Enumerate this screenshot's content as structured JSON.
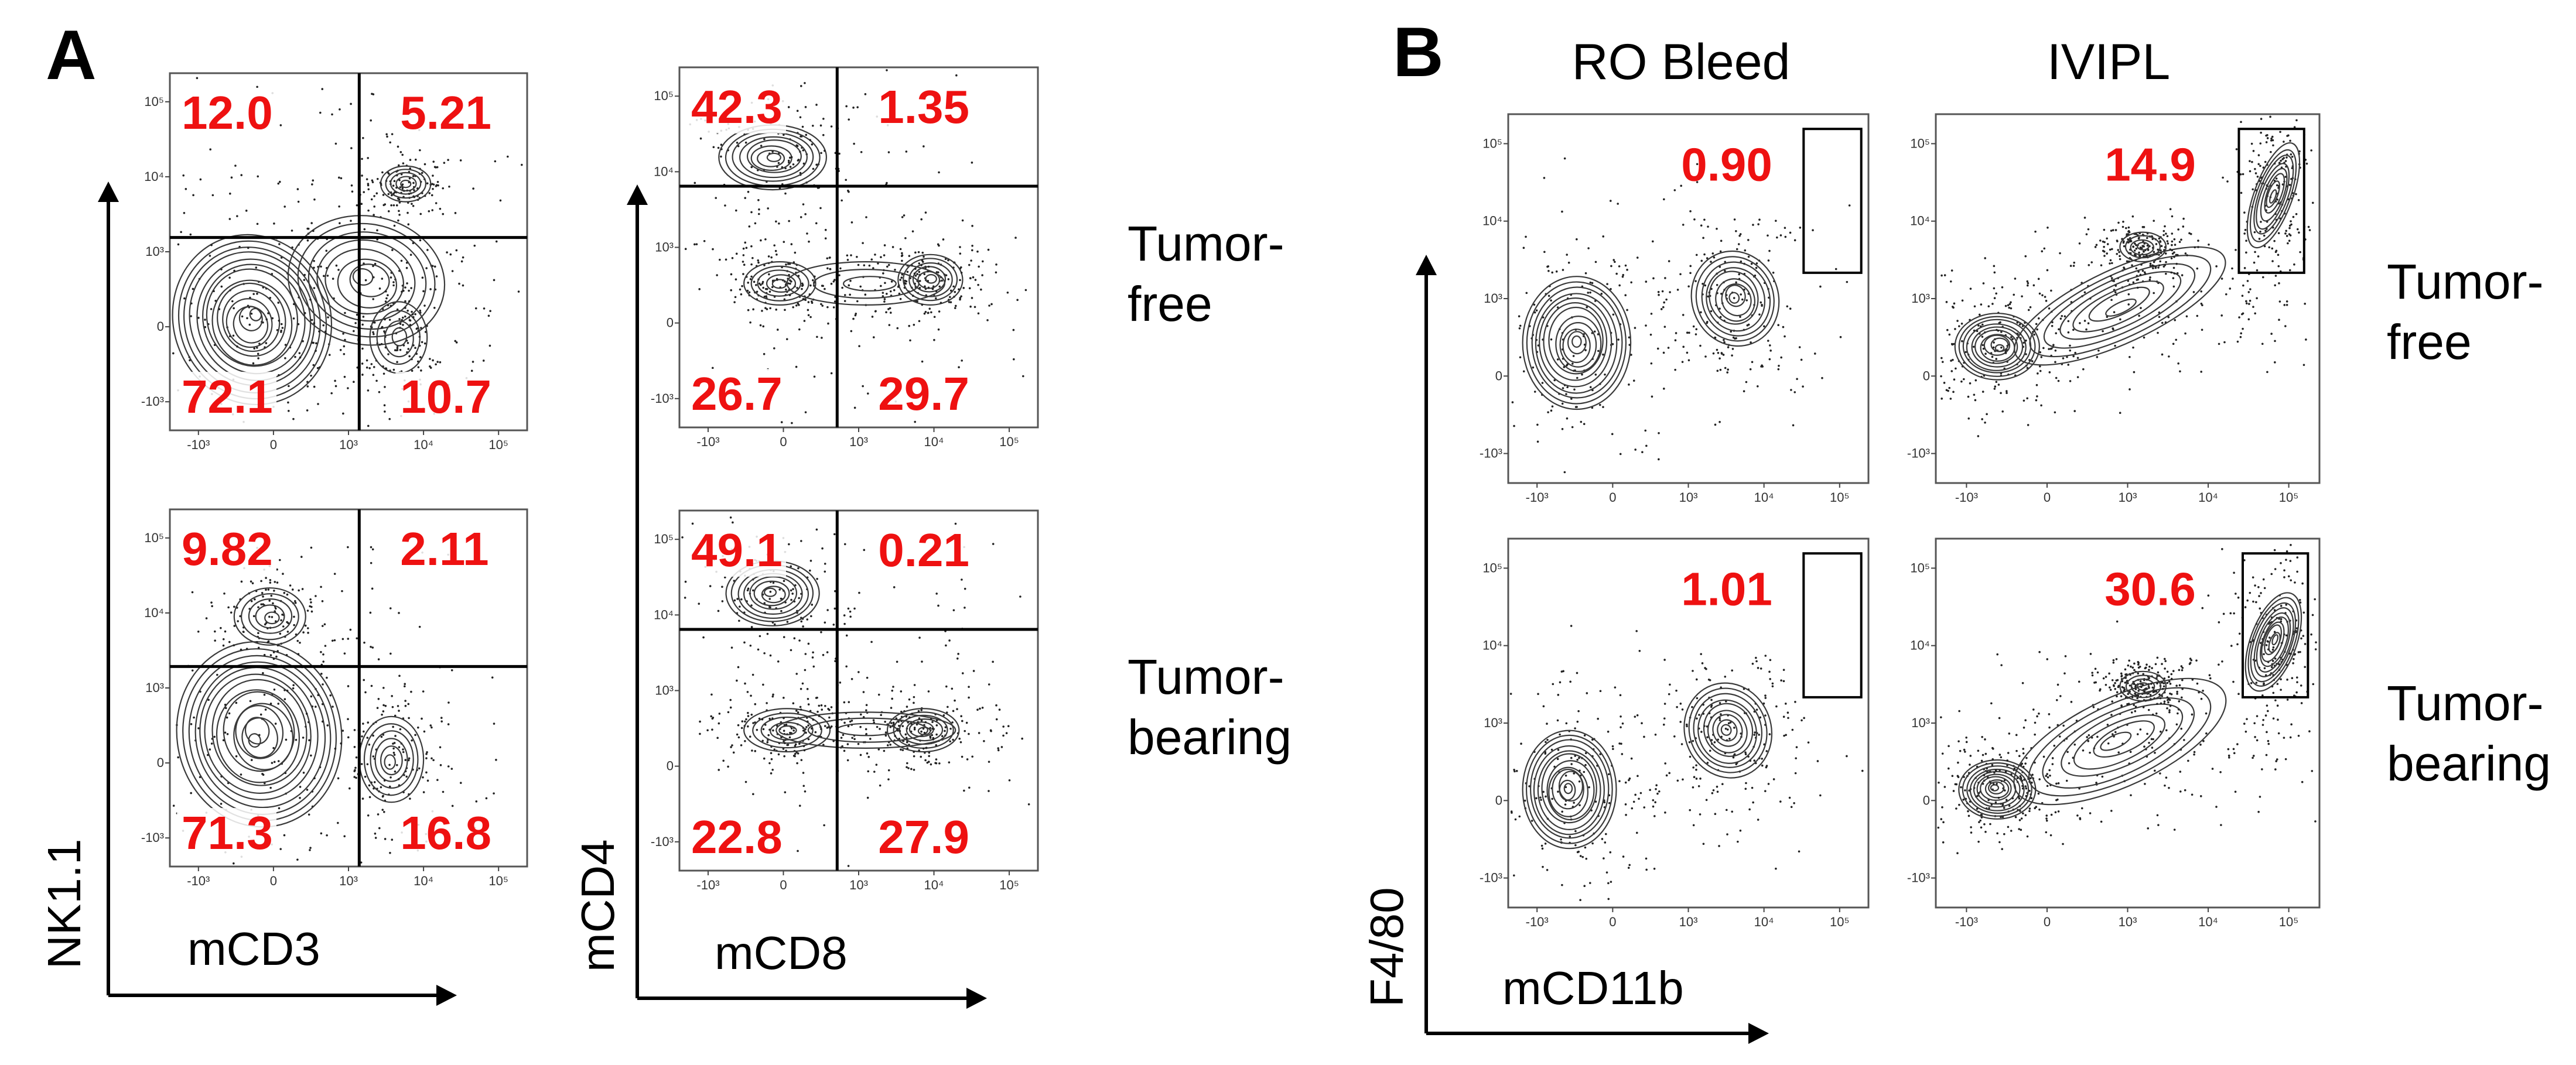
{
  "chart_data": {
    "type": "flow-cytometry-contour",
    "panels": [
      {
        "letter": "A",
        "columns": [
          {
            "x_label": "mCD3",
            "y_label": "NK1.1",
            "rows": [
              {
                "condition": "Tumor-free",
                "gate": "quadrant",
                "upper_left": "12.0",
                "upper_right": "5.21",
                "lower_left": "72.1",
                "lower_right": "10.7"
              },
              {
                "condition": "Tumor-bearing",
                "gate": "quadrant",
                "upper_left": "9.82",
                "upper_right": "2.11",
                "lower_left": "71.3",
                "lower_right": "16.8"
              }
            ]
          },
          {
            "x_label": "mCD8",
            "y_label": "mCD4",
            "rows": [
              {
                "condition": "Tumor-free",
                "gate": "quadrant",
                "upper_left": "42.3",
                "upper_right": "1.35",
                "lower_left": "26.7",
                "lower_right": "29.7"
              },
              {
                "condition": "Tumor-bearing",
                "gate": "quadrant",
                "upper_left": "49.1",
                "upper_right": "0.21",
                "lower_left": "22.8",
                "lower_right": "27.9"
              }
            ]
          }
        ],
        "row_labels": [
          [
            "Tumor-",
            "free"
          ],
          [
            "Tumor-",
            "bearing"
          ]
        ]
      },
      {
        "letter": "B",
        "column_headers": [
          "RO Bleed",
          "IVIPL"
        ],
        "x_label": "mCD11b",
        "y_label": "F4/80",
        "plots": [
          {
            "column": "RO Bleed",
            "condition": "Tumor-free",
            "gate": "rectangle",
            "value": "0.90"
          },
          {
            "column": "IVIPL",
            "condition": "Tumor-free",
            "gate": "rectangle",
            "value": "14.9"
          },
          {
            "column": "RO Bleed",
            "condition": "Tumor-bearing",
            "gate": "rectangle",
            "value": "1.01"
          },
          {
            "column": "IVIPL",
            "condition": "Tumor-bearing",
            "gate": "rectangle",
            "value": "30.6"
          }
        ],
        "row_labels": [
          [
            "Tumor-",
            "free"
          ],
          [
            "Tumor-",
            "bearing"
          ]
        ]
      }
    ],
    "tick_labels": {
      "x": [
        "-10³",
        "0",
        "10³",
        "10⁴",
        "10⁵"
      ],
      "y": [
        "10⁵",
        "10⁴",
        "10³",
        "0",
        "-10³"
      ]
    }
  }
}
